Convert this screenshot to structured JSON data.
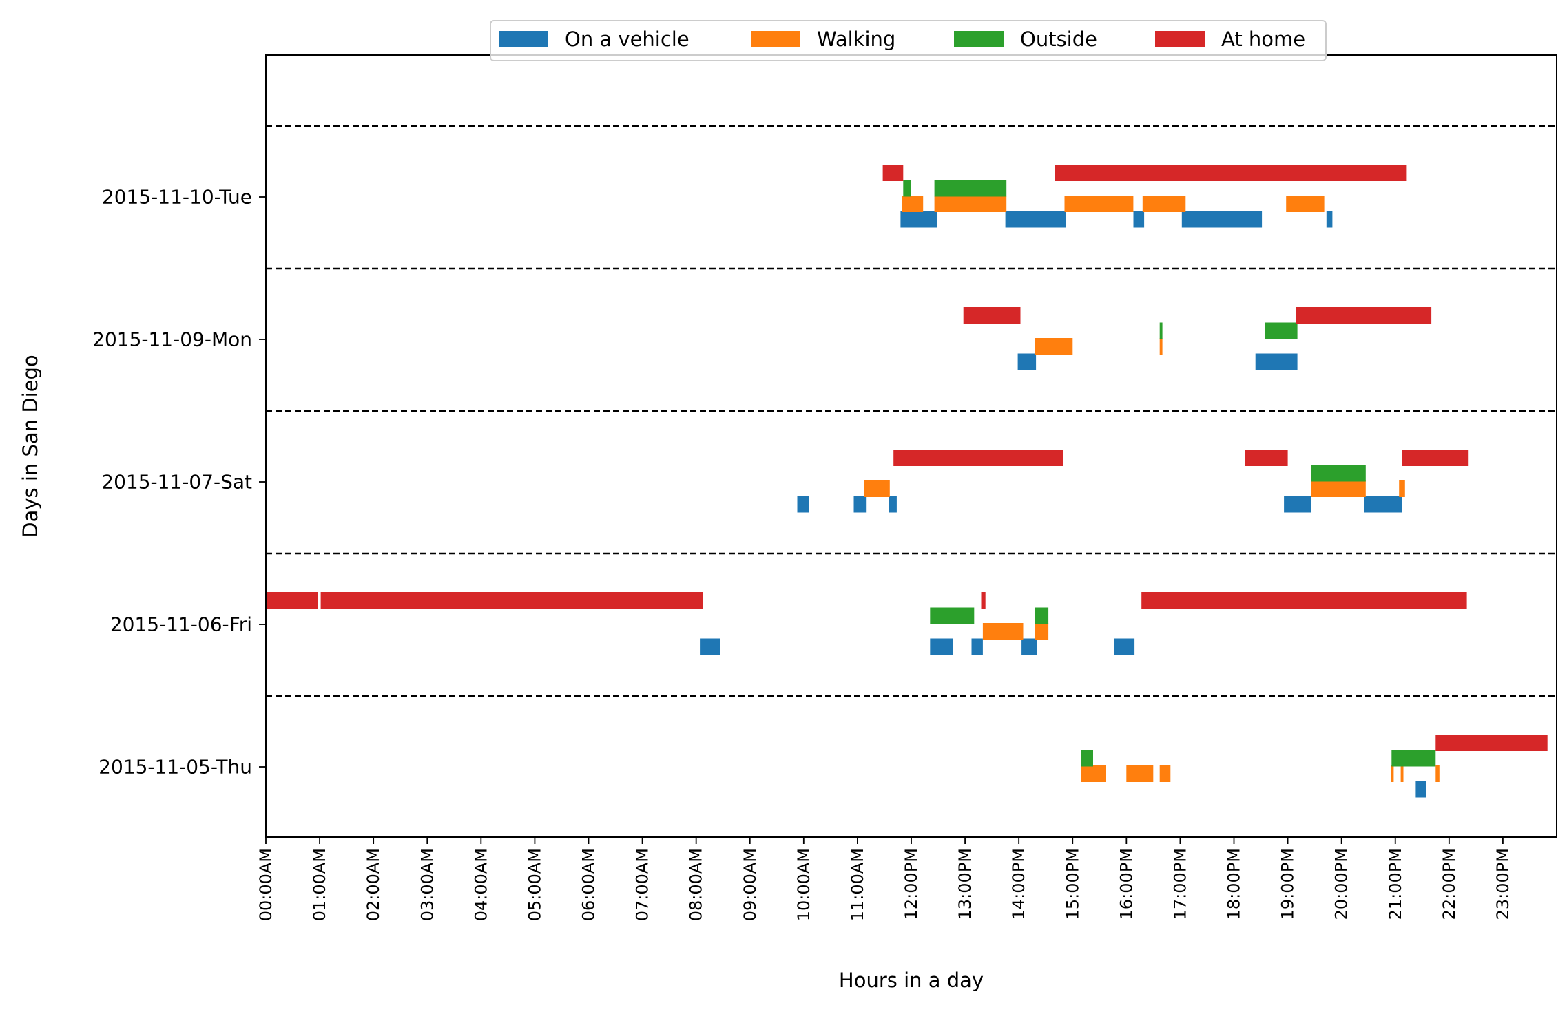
{
  "chart_data": {
    "type": "timeline",
    "title": "",
    "xlabel": "Hours in a day",
    "ylabel": "Days in San Diego",
    "xlim": [
      0,
      24
    ],
    "x_ticks": [
      {
        "value": 0,
        "label": "00:00AM"
      },
      {
        "value": 1,
        "label": "01:00AM"
      },
      {
        "value": 2,
        "label": "02:00AM"
      },
      {
        "value": 3,
        "label": "03:00AM"
      },
      {
        "value": 4,
        "label": "04:00AM"
      },
      {
        "value": 5,
        "label": "05:00AM"
      },
      {
        "value": 6,
        "label": "06:00AM"
      },
      {
        "value": 7,
        "label": "07:00AM"
      },
      {
        "value": 8,
        "label": "08:00AM"
      },
      {
        "value": 9,
        "label": "09:00AM"
      },
      {
        "value": 10,
        "label": "10:00AM"
      },
      {
        "value": 11,
        "label": "11:00AM"
      },
      {
        "value": 12,
        "label": "12:00PM"
      },
      {
        "value": 13,
        "label": "13:00PM"
      },
      {
        "value": 14,
        "label": "14:00PM"
      },
      {
        "value": 15,
        "label": "15:00PM"
      },
      {
        "value": 16,
        "label": "16:00PM"
      },
      {
        "value": 17,
        "label": "17:00PM"
      },
      {
        "value": 18,
        "label": "18:00PM"
      },
      {
        "value": 19,
        "label": "19:00PM"
      },
      {
        "value": 20,
        "label": "20:00PM"
      },
      {
        "value": 21,
        "label": "21:00PM"
      },
      {
        "value": 22,
        "label": "22:00PM"
      },
      {
        "value": 23,
        "label": "23:00PM"
      }
    ],
    "days": [
      "2015-11-05-Thu",
      "2015-11-06-Fri",
      "2015-11-07-Sat",
      "2015-11-09-Mon",
      "2015-11-10-Tue"
    ],
    "legend_position": "top-center",
    "grid": false,
    "series": [
      {
        "name": "On a vehicle",
        "color": "#1f77b4",
        "level": 0,
        "intervals": [
          {
            "day": "2015-11-05-Thu",
            "start": 21.38,
            "end": 21.57
          },
          {
            "day": "2015-11-06-Fri",
            "start": 8.07,
            "end": 8.45
          },
          {
            "day": "2015-11-06-Fri",
            "start": 12.35,
            "end": 12.78
          },
          {
            "day": "2015-11-06-Fri",
            "start": 13.12,
            "end": 13.33
          },
          {
            "day": "2015-11-06-Fri",
            "start": 14.05,
            "end": 14.33
          },
          {
            "day": "2015-11-06-Fri",
            "start": 15.77,
            "end": 16.15
          },
          {
            "day": "2015-11-07-Sat",
            "start": 9.88,
            "end": 10.1
          },
          {
            "day": "2015-11-07-Sat",
            "start": 10.93,
            "end": 11.17
          },
          {
            "day": "2015-11-07-Sat",
            "start": 11.58,
            "end": 11.73
          },
          {
            "day": "2015-11-07-Sat",
            "start": 18.93,
            "end": 19.43
          },
          {
            "day": "2015-11-07-Sat",
            "start": 20.42,
            "end": 21.13
          },
          {
            "day": "2015-11-09-Mon",
            "start": 13.98,
            "end": 14.32
          },
          {
            "day": "2015-11-09-Mon",
            "start": 18.4,
            "end": 19.18
          },
          {
            "day": "2015-11-10-Tue",
            "start": 11.8,
            "end": 12.48
          },
          {
            "day": "2015-11-10-Tue",
            "start": 13.75,
            "end": 14.88
          },
          {
            "day": "2015-11-10-Tue",
            "start": 16.13,
            "end": 16.33
          },
          {
            "day": "2015-11-10-Tue",
            "start": 17.03,
            "end": 18.52
          },
          {
            "day": "2015-11-10-Tue",
            "start": 19.72,
            "end": 19.83
          }
        ]
      },
      {
        "name": "Walking",
        "color": "#ff7f0e",
        "level": 1,
        "intervals": [
          {
            "day": "2015-11-05-Thu",
            "start": 15.15,
            "end": 15.62
          },
          {
            "day": "2015-11-05-Thu",
            "start": 16.0,
            "end": 16.5
          },
          {
            "day": "2015-11-05-Thu",
            "start": 16.62,
            "end": 16.82
          },
          {
            "day": "2015-11-05-Thu",
            "start": 20.92,
            "end": 20.97
          },
          {
            "day": "2015-11-05-Thu",
            "start": 21.1,
            "end": 21.15
          },
          {
            "day": "2015-11-05-Thu",
            "start": 21.75,
            "end": 21.82
          },
          {
            "day": "2015-11-06-Fri",
            "start": 13.33,
            "end": 14.08
          },
          {
            "day": "2015-11-06-Fri",
            "start": 14.3,
            "end": 14.55
          },
          {
            "day": "2015-11-07-Sat",
            "start": 11.12,
            "end": 11.6
          },
          {
            "day": "2015-11-07-Sat",
            "start": 19.43,
            "end": 20.45
          },
          {
            "day": "2015-11-07-Sat",
            "start": 21.07,
            "end": 21.18
          },
          {
            "day": "2015-11-09-Mon",
            "start": 14.3,
            "end": 15.0
          },
          {
            "day": "2015-11-09-Mon",
            "start": 16.62,
            "end": 16.67
          },
          {
            "day": "2015-11-10-Tue",
            "start": 11.83,
            "end": 12.22
          },
          {
            "day": "2015-11-10-Tue",
            "start": 12.43,
            "end": 13.77
          },
          {
            "day": "2015-11-10-Tue",
            "start": 14.85,
            "end": 16.13
          },
          {
            "day": "2015-11-10-Tue",
            "start": 16.3,
            "end": 17.1
          },
          {
            "day": "2015-11-10-Tue",
            "start": 18.97,
            "end": 19.68
          }
        ]
      },
      {
        "name": "Outside",
        "color": "#2ca02c",
        "level": 2,
        "intervals": [
          {
            "day": "2015-11-05-Thu",
            "start": 15.15,
            "end": 15.38
          },
          {
            "day": "2015-11-05-Thu",
            "start": 20.93,
            "end": 21.75
          },
          {
            "day": "2015-11-06-Fri",
            "start": 12.35,
            "end": 13.17
          },
          {
            "day": "2015-11-06-Fri",
            "start": 14.3,
            "end": 14.55
          },
          {
            "day": "2015-11-07-Sat",
            "start": 19.43,
            "end": 20.45
          },
          {
            "day": "2015-11-09-Mon",
            "start": 16.62,
            "end": 16.67
          },
          {
            "day": "2015-11-09-Mon",
            "start": 18.57,
            "end": 19.18
          },
          {
            "day": "2015-11-10-Tue",
            "start": 11.85,
            "end": 12.0
          },
          {
            "day": "2015-11-10-Tue",
            "start": 12.43,
            "end": 13.77
          }
        ]
      },
      {
        "name": "At home",
        "color": "#d62728",
        "level": 3,
        "intervals": [
          {
            "day": "2015-11-05-Thu",
            "start": 21.75,
            "end": 23.83
          },
          {
            "day": "2015-11-06-Fri",
            "start": 0.0,
            "end": 0.97
          },
          {
            "day": "2015-11-06-Fri",
            "start": 1.02,
            "end": 8.12
          },
          {
            "day": "2015-11-06-Fri",
            "start": 13.3,
            "end": 13.38
          },
          {
            "day": "2015-11-06-Fri",
            "start": 16.28,
            "end": 22.33
          },
          {
            "day": "2015-11-07-Sat",
            "start": 11.67,
            "end": 14.83
          },
          {
            "day": "2015-11-07-Sat",
            "start": 18.2,
            "end": 19.0
          },
          {
            "day": "2015-11-07-Sat",
            "start": 21.13,
            "end": 22.35
          },
          {
            "day": "2015-11-09-Mon",
            "start": 12.97,
            "end": 14.03
          },
          {
            "day": "2015-11-09-Mon",
            "start": 19.15,
            "end": 21.67
          },
          {
            "day": "2015-11-10-Tue",
            "start": 11.47,
            "end": 11.85
          },
          {
            "day": "2015-11-10-Tue",
            "start": 14.67,
            "end": 21.2
          }
        ]
      }
    ]
  }
}
